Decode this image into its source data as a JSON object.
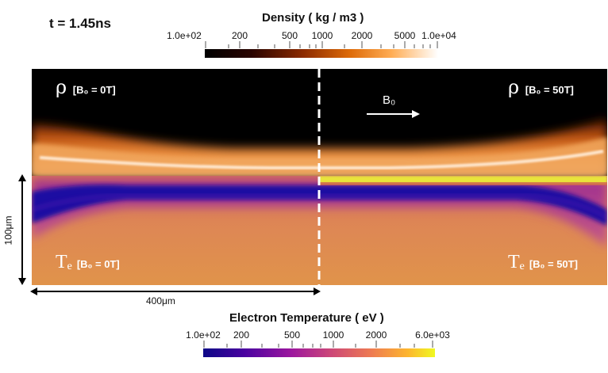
{
  "time_label": "t = 1.45ns",
  "density_colorbar": {
    "title": "Density ( kg / m3 )",
    "ticks": [
      "1.0e+02",
      "200",
      "500",
      "1000",
      "2000",
      "5000",
      "1.0e+04"
    ]
  },
  "temperature_colorbar": {
    "title": "Electron Temperature ( eV )",
    "ticks": [
      "1.0e+02",
      "200",
      "500",
      "1000",
      "2000",
      "6.0e+03"
    ]
  },
  "panels": {
    "rho_left": {
      "symbol": "ρ",
      "label": "[B₀ = 0T]"
    },
    "rho_right": {
      "symbol": "ρ",
      "label": "[B₀ = 50T]"
    },
    "te_left": {
      "symbol": "Tₑ",
      "label": "[B₀ = 0T]"
    },
    "te_right": {
      "symbol": "Tₑ",
      "label": "[B₀ = 50T]"
    },
    "field_label": "B₀"
  },
  "dimensions": {
    "height_label": "100μm",
    "width_label": "400μm"
  }
}
